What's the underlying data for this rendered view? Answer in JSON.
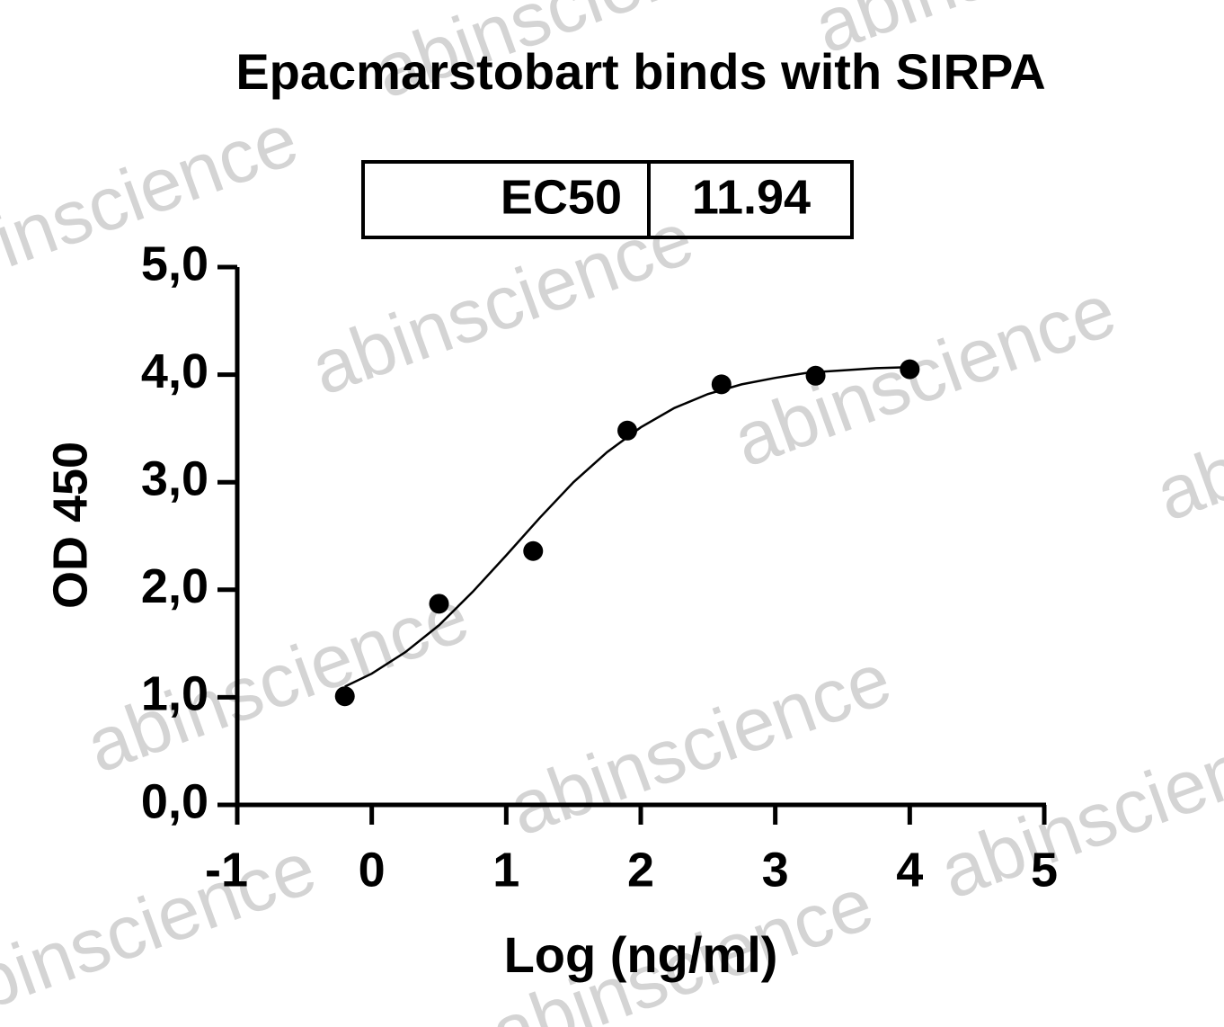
{
  "chart_data": {
    "type": "scatter",
    "title": "Epacmarstobart binds with SIRPA",
    "xlabel": "Log (ng/ml)",
    "ylabel": "OD 450",
    "ec50_table": {
      "label": "EC50",
      "value": "11.94"
    },
    "watermark": "abinscience",
    "xlim": [
      -1,
      5
    ],
    "xticks": [
      -1,
      0,
      1,
      2,
      3,
      4,
      5
    ],
    "ylim": [
      0,
      5
    ],
    "yticks": [
      {
        "value": 0,
        "label": "0,0"
      },
      {
        "value": 1,
        "label": "1,0"
      },
      {
        "value": 2,
        "label": "2,0"
      },
      {
        "value": 3,
        "label": "3,0"
      },
      {
        "value": 4,
        "label": "4,0"
      },
      {
        "value": 5,
        "label": "5,0"
      }
    ],
    "series": [
      {
        "mode": "markers",
        "color": "#000000",
        "x": [
          -0.2,
          0.5,
          1.2,
          1.9,
          2.6,
          3.3,
          4.0
        ],
        "values": [
          1.01,
          1.87,
          2.36,
          3.48,
          3.91,
          3.99,
          4.05
        ]
      },
      {
        "mode": "line",
        "color": "#000000",
        "x": [
          -0.2,
          0,
          0.25,
          0.5,
          0.75,
          1.0,
          1.25,
          1.5,
          1.75,
          2.0,
          2.25,
          2.5,
          2.75,
          3.0,
          3.25,
          3.5,
          3.75,
          4.0
        ],
        "values": [
          1.1,
          1.22,
          1.42,
          1.67,
          1.98,
          2.32,
          2.67,
          3.0,
          3.28,
          3.51,
          3.69,
          3.82,
          3.91,
          3.97,
          4.02,
          4.04,
          4.06,
          4.07
        ]
      }
    ]
  }
}
